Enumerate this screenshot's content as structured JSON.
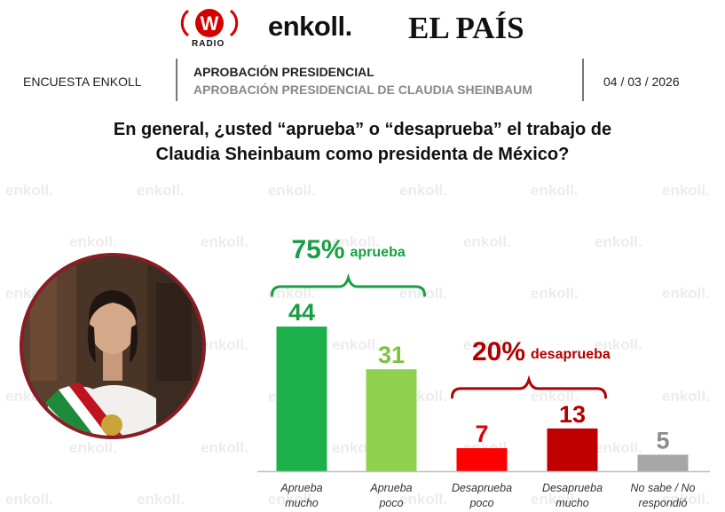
{
  "logos": {
    "radio_letter": "W",
    "radio_label": "RADIO",
    "enkoll": "enkoll.",
    "elpais": "EL PAÍS",
    "watermark": "enkoll."
  },
  "header": {
    "left": "ENCUESTA ENKOLL",
    "title": "APROBACIÓN PRESIDENCIAL",
    "subtitle": "APROBACIÓN PRESIDENCIAL DE CLAUDIA SHEINBAUM",
    "date": "04 / 03 / 2026"
  },
  "question": {
    "line1": "En general, ¿usted “aprueba” o “desaprueba” el trabajo de",
    "line2": "Claudia Sheinbaum como presidenta de México?"
  },
  "chart_data": {
    "type": "bar",
    "categories": [
      [
        "Aprueba",
        "mucho"
      ],
      [
        "Aprueba",
        "poco"
      ],
      [
        "Desaprueba",
        "poco"
      ],
      [
        "Desaprueba",
        "mucho"
      ],
      [
        "No sabe / No",
        "respondió"
      ]
    ],
    "values": [
      44,
      31,
      7,
      13,
      5
    ],
    "colors": [
      "#1db14b",
      "#8fd14f",
      "#ff0000",
      "#c00000",
      "#a6a6a6"
    ],
    "label_colors": [
      "#1a9e43",
      "#7cc23f",
      "#e00000",
      "#b00000",
      "#8c8c8c"
    ],
    "groups": [
      {
        "percent": "75%",
        "word": "aprueba",
        "members": [
          0,
          1
        ],
        "color": "#1a9e43"
      },
      {
        "percent": "20%",
        "word": "desaprueba",
        "members": [
          2,
          3
        ],
        "color": "#b00000"
      }
    ],
    "ylim": [
      0,
      48
    ],
    "title": "",
    "xlabel": "",
    "ylabel": ""
  }
}
